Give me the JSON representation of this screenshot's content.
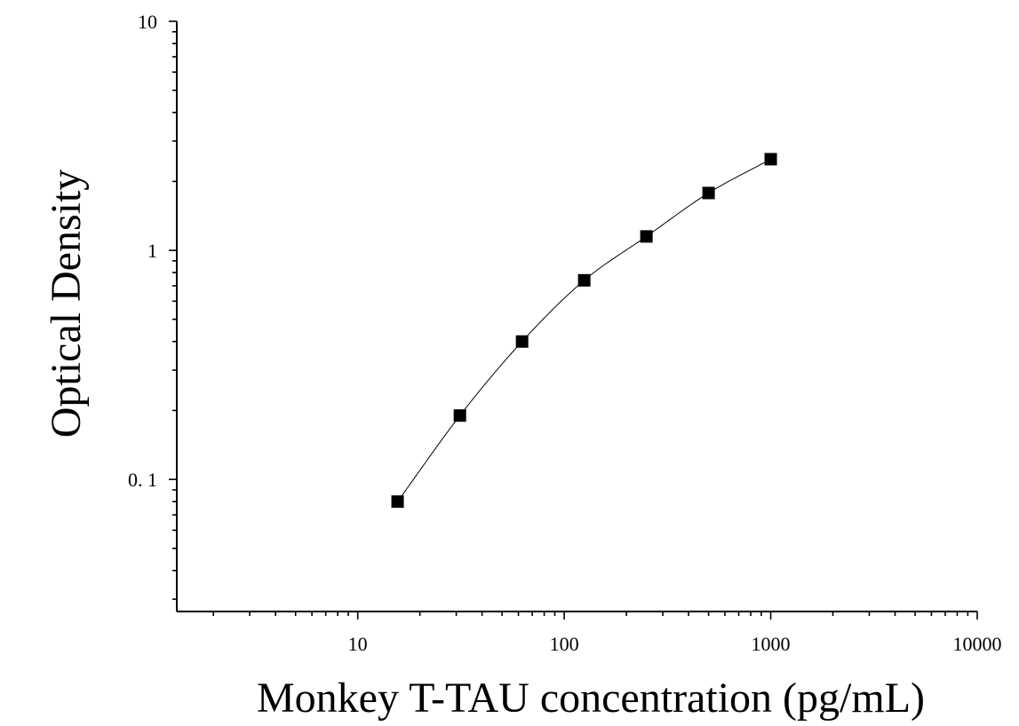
{
  "chart_data": {
    "type": "scatter",
    "title": "",
    "xlabel": "Monkey T-TAU concentration (pg/mL)",
    "ylabel": "Optical Density",
    "x_scale": "log",
    "y_scale": "log",
    "xlim": [
      1.33,
      10000
    ],
    "ylim": [
      0.0265,
      10
    ],
    "x_tick_values": [
      10,
      100,
      1000,
      10000
    ],
    "x_tick_labels": [
      "10",
      "100",
      "1000",
      "10000"
    ],
    "y_tick_values": [
      0.1,
      1,
      10
    ],
    "y_tick_labels": [
      "0. 1",
      "1",
      "10"
    ],
    "grid": false,
    "legend": "none",
    "series": [
      {
        "marker": "square",
        "color": "#000000",
        "x": [
          15.6,
          31.25,
          62.5,
          125,
          250,
          500,
          1000
        ],
        "y": [
          0.08,
          0.19,
          0.4,
          0.74,
          1.15,
          1.78,
          2.5
        ]
      }
    ],
    "fit_curve": {
      "type": "smooth",
      "color": "#000000",
      "x_range": [
        15.6,
        1000
      ]
    }
  }
}
